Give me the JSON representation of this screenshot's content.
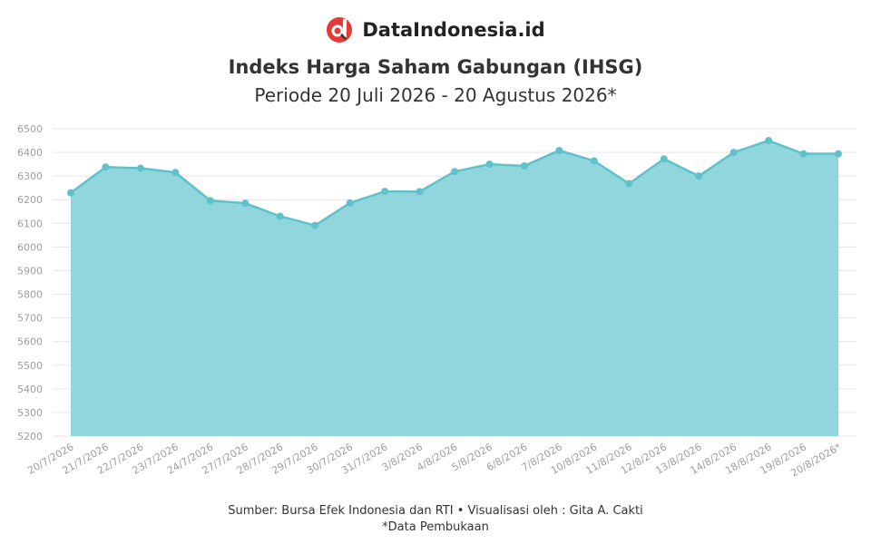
{
  "brand": {
    "name": "DataIndonesia.id"
  },
  "chart_data": {
    "type": "area",
    "title": "Indeks Harga Saham Gabungan (IHSG)",
    "subtitle": "Periode 20 Juli 2026 - 20 Agustus 2026*",
    "xlabel": "",
    "ylabel": "",
    "ylim": [
      5200,
      6500
    ],
    "yticks": [
      5200,
      5300,
      5400,
      5500,
      5600,
      5700,
      5800,
      5900,
      6000,
      6100,
      6200,
      6300,
      6400,
      6500
    ],
    "grid": true,
    "categories": [
      "20/7/2026",
      "21/7/2026",
      "22/7/2026",
      "23/7/2026",
      "24/7/2026",
      "27/7/2026",
      "28/7/2026",
      "29/7/2026",
      "30/7/2026",
      "31/7/2026",
      "3/8/2026",
      "4/8/2026",
      "5/8/2026",
      "6/8/2026",
      "7/8/2026",
      "10/8/2026",
      "11/8/2026",
      "12/8/2026",
      "13/8/2026",
      "14/8/2026",
      "18/8/2026",
      "19/8/2026",
      "20/8/2026*"
    ],
    "series": [
      {
        "values": [
          6229,
          6338,
          6333,
          6315,
          6196,
          6185,
          6130,
          6091,
          6186,
          6235,
          6234,
          6319,
          6350,
          6343,
          6408,
          6364,
          6268,
          6372,
          6300,
          6400,
          6450,
          6394,
          6394
        ],
        "color": "#5ec2cb",
        "fill": "#91d6dd"
      }
    ]
  },
  "footer": {
    "source": "Sumber: Bursa Efek Indonesia dan RTI • Visualisasi oleh : Gita A. Cakti",
    "note": "*Data Pembukaan"
  }
}
